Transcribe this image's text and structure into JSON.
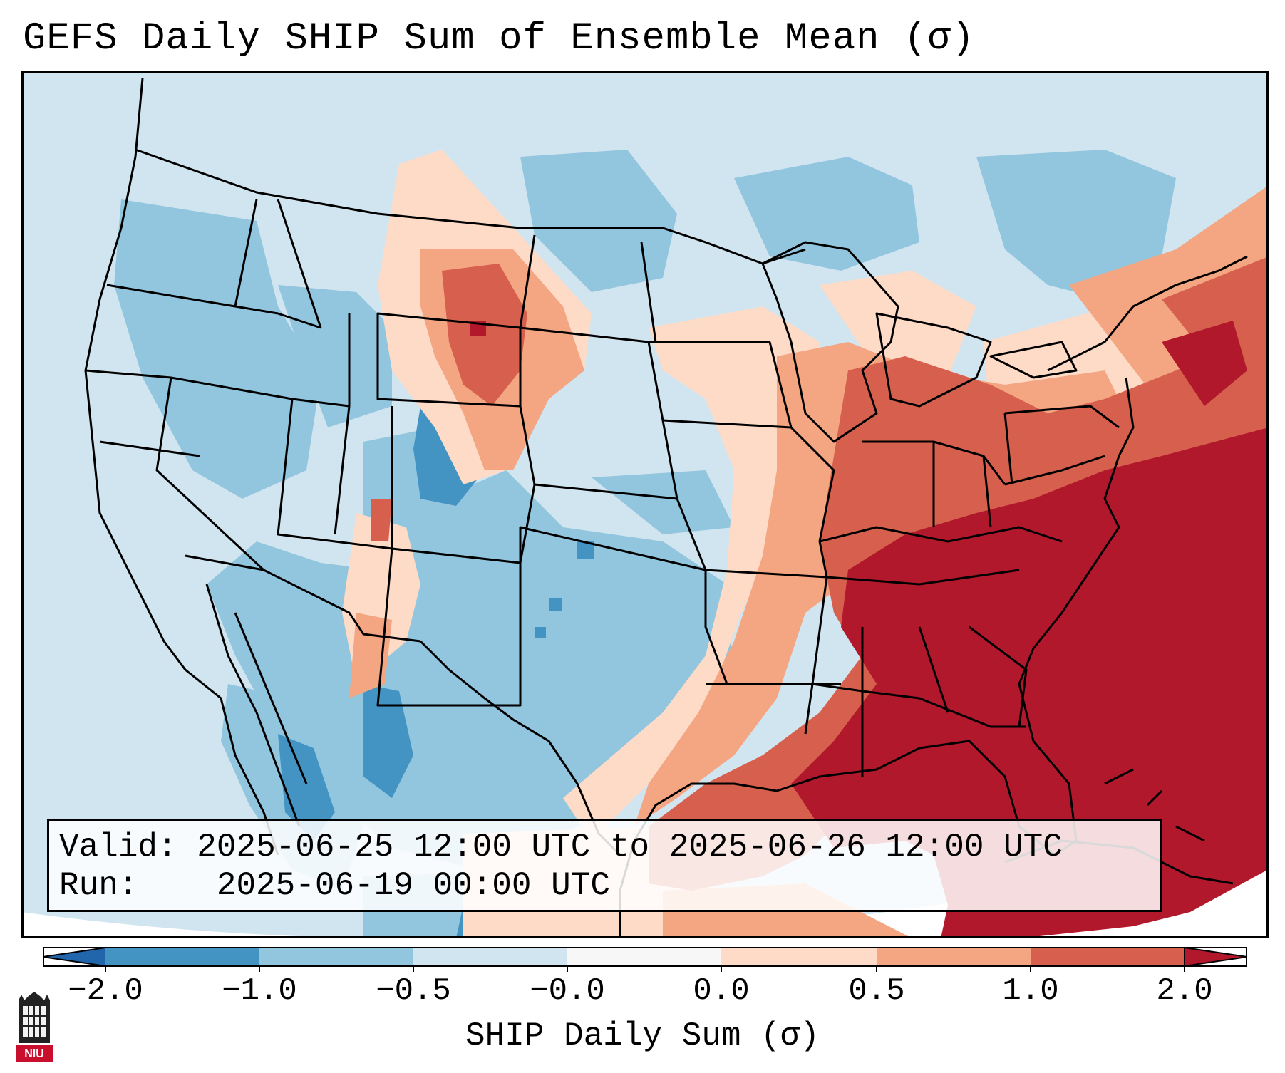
{
  "title": "GEFS Daily SHIP Sum of Ensemble Mean (σ)",
  "map": {
    "region": "Contiguous United States, northern Mexico, Gulf of Mexico and western Atlantic",
    "ocean_color": "#d1e5f0",
    "missing_color": "#ffffff"
  },
  "info": {
    "valid_label": "Valid:",
    "valid_value": "2025-06-25 12:00 UTC to 2025-06-26 12:00 UTC",
    "run_label": "Run:",
    "run_value": "2025-06-19 00:00 UTC"
  },
  "colorbar": {
    "label": "SHIP Daily Sum (σ)",
    "ticks": [
      "−2.0",
      "−1.0",
      "−0.5",
      "−0.0",
      "0.0",
      "0.5",
      "1.0",
      "2.0"
    ],
    "bins": [
      {
        "range": "< -2.0",
        "color": "#2166ac"
      },
      {
        "range": "-2.0 to -1.0",
        "color": "#4393c3"
      },
      {
        "range": "-1.0 to -0.5",
        "color": "#92c5de"
      },
      {
        "range": "-0.5 to -0.0",
        "color": "#d1e5f0"
      },
      {
        "range": "-0.0 to 0.0",
        "color": "#f7f7f7"
      },
      {
        "range": "0.0 to 0.5",
        "color": "#fddbc7"
      },
      {
        "range": "0.5 to 1.0",
        "color": "#f4a582"
      },
      {
        "range": "1.0 to 2.0",
        "color": "#d6604d"
      },
      {
        "range": "> 2.0",
        "color": "#b2182b"
      }
    ]
  },
  "logo": {
    "text": "NIU",
    "color": "#c8102e"
  }
}
